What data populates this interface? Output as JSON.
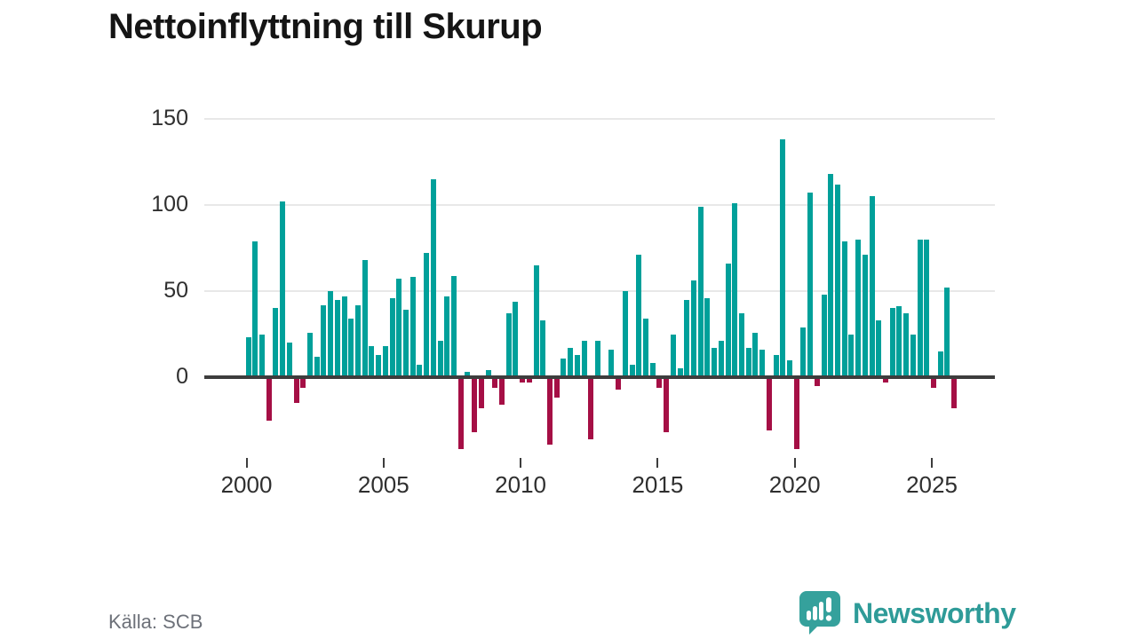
{
  "title": "Nettoinflyttning till Skurup",
  "source": "Källa: SCB",
  "branding": {
    "name": "Newsworthy",
    "icon": "bar-chart-speech-bubble-icon"
  },
  "colors": {
    "positive_bar": "#00a09a",
    "negative_bar": "#a50f45",
    "axis": "#3d3d3d",
    "grid": "#e8e8e8",
    "title_text": "#151515",
    "tick_text": "#2f2f2f",
    "source_text": "#6d7179",
    "brand": "#2e9b98"
  },
  "chart_data": {
    "type": "bar",
    "title": "Nettoinflyttning till Skurup",
    "xlabel": "",
    "ylabel": "",
    "x_unit": "quarter",
    "ylim": [
      -50,
      160
    ],
    "y_ticks": [
      0,
      50,
      100,
      150
    ],
    "x_tick_labels": [
      "2000",
      "2005",
      "2010",
      "2015",
      "2020",
      "2025"
    ],
    "grid": "horizontal",
    "legend": "none",
    "points": [
      {
        "t": "2000 Q1",
        "v": 23
      },
      {
        "t": "2000 Q2",
        "v": 79
      },
      {
        "t": "2000 Q3",
        "v": 25
      },
      {
        "t": "2000 Q4",
        "v": -25
      },
      {
        "t": "2001 Q1",
        "v": 40
      },
      {
        "t": "2001 Q2",
        "v": 102
      },
      {
        "t": "2001 Q3",
        "v": 20
      },
      {
        "t": "2001 Q4",
        "v": -15
      },
      {
        "t": "2002 Q1",
        "v": -6
      },
      {
        "t": "2002 Q2",
        "v": 26
      },
      {
        "t": "2002 Q3",
        "v": 12
      },
      {
        "t": "2002 Q4",
        "v": 42
      },
      {
        "t": "2003 Q1",
        "v": 50
      },
      {
        "t": "2003 Q2",
        "v": 45
      },
      {
        "t": "2003 Q3",
        "v": 47
      },
      {
        "t": "2003 Q4",
        "v": 34
      },
      {
        "t": "2004 Q1",
        "v": 42
      },
      {
        "t": "2004 Q2",
        "v": 68
      },
      {
        "t": "2004 Q3",
        "v": 18
      },
      {
        "t": "2004 Q4",
        "v": 13
      },
      {
        "t": "2005 Q1",
        "v": 18
      },
      {
        "t": "2005 Q2",
        "v": 46
      },
      {
        "t": "2005 Q3",
        "v": 57
      },
      {
        "t": "2005 Q4",
        "v": 39
      },
      {
        "t": "2006 Q1",
        "v": 58
      },
      {
        "t": "2006 Q2",
        "v": 7
      },
      {
        "t": "2006 Q3",
        "v": 72
      },
      {
        "t": "2006 Q4",
        "v": 115
      },
      {
        "t": "2007 Q1",
        "v": 21
      },
      {
        "t": "2007 Q2",
        "v": 47
      },
      {
        "t": "2007 Q3",
        "v": 59
      },
      {
        "t": "2007 Q4",
        "v": -42
      },
      {
        "t": "2008 Q1",
        "v": 3
      },
      {
        "t": "2008 Q2",
        "v": -32
      },
      {
        "t": "2008 Q3",
        "v": -18
      },
      {
        "t": "2008 Q4",
        "v": 4
      },
      {
        "t": "2009 Q1",
        "v": -6
      },
      {
        "t": "2009 Q2",
        "v": -16
      },
      {
        "t": "2009 Q3",
        "v": 37
      },
      {
        "t": "2009 Q4",
        "v": 44
      },
      {
        "t": "2010 Q1",
        "v": -3
      },
      {
        "t": "2010 Q2",
        "v": -3
      },
      {
        "t": "2010 Q3",
        "v": 65
      },
      {
        "t": "2010 Q4",
        "v": 33
      },
      {
        "t": "2011 Q1",
        "v": -39
      },
      {
        "t": "2011 Q2",
        "v": -12
      },
      {
        "t": "2011 Q3",
        "v": 11
      },
      {
        "t": "2011 Q4",
        "v": 17
      },
      {
        "t": "2012 Q1",
        "v": 13
      },
      {
        "t": "2012 Q2",
        "v": 21
      },
      {
        "t": "2012 Q3",
        "v": -36
      },
      {
        "t": "2012 Q4",
        "v": 21
      },
      {
        "t": "2013 Q1",
        "v": 0
      },
      {
        "t": "2013 Q2",
        "v": 16
      },
      {
        "t": "2013 Q3",
        "v": -7
      },
      {
        "t": "2013 Q4",
        "v": 50
      },
      {
        "t": "2014 Q1",
        "v": 7
      },
      {
        "t": "2014 Q2",
        "v": 71
      },
      {
        "t": "2014 Q3",
        "v": 34
      },
      {
        "t": "2014 Q4",
        "v": 8
      },
      {
        "t": "2015 Q1",
        "v": -6
      },
      {
        "t": "2015 Q2",
        "v": -32
      },
      {
        "t": "2015 Q3",
        "v": 25
      },
      {
        "t": "2015 Q4",
        "v": 5
      },
      {
        "t": "2016 Q1",
        "v": 45
      },
      {
        "t": "2016 Q2",
        "v": 56
      },
      {
        "t": "2016 Q3",
        "v": 99
      },
      {
        "t": "2016 Q4",
        "v": 46
      },
      {
        "t": "2017 Q1",
        "v": 17
      },
      {
        "t": "2017 Q2",
        "v": 21
      },
      {
        "t": "2017 Q3",
        "v": 66
      },
      {
        "t": "2017 Q4",
        "v": 101
      },
      {
        "t": "2018 Q1",
        "v": 37
      },
      {
        "t": "2018 Q2",
        "v": 17
      },
      {
        "t": "2018 Q3",
        "v": 26
      },
      {
        "t": "2018 Q4",
        "v": 16
      },
      {
        "t": "2019 Q1",
        "v": -31
      },
      {
        "t": "2019 Q2",
        "v": 13
      },
      {
        "t": "2019 Q3",
        "v": 138
      },
      {
        "t": "2019 Q4",
        "v": 10
      },
      {
        "t": "2020 Q1",
        "v": -42
      },
      {
        "t": "2020 Q2",
        "v": 29
      },
      {
        "t": "2020 Q3",
        "v": 107
      },
      {
        "t": "2020 Q4",
        "v": -5
      },
      {
        "t": "2021 Q1",
        "v": 48
      },
      {
        "t": "2021 Q2",
        "v": 118
      },
      {
        "t": "2021 Q3",
        "v": 112
      },
      {
        "t": "2021 Q4",
        "v": 79
      },
      {
        "t": "2022 Q1",
        "v": 25
      },
      {
        "t": "2022 Q2",
        "v": 80
      },
      {
        "t": "2022 Q3",
        "v": 71
      },
      {
        "t": "2022 Q4",
        "v": 105
      },
      {
        "t": "2023 Q1",
        "v": 33
      },
      {
        "t": "2023 Q2",
        "v": -3
      },
      {
        "t": "2023 Q3",
        "v": 40
      },
      {
        "t": "2023 Q4",
        "v": 41
      },
      {
        "t": "2024 Q1",
        "v": 37
      },
      {
        "t": "2024 Q2",
        "v": 25
      },
      {
        "t": "2024 Q3",
        "v": 80
      },
      {
        "t": "2024 Q4",
        "v": 80
      },
      {
        "t": "2025 Q1",
        "v": -6
      },
      {
        "t": "2025 Q2",
        "v": 15
      },
      {
        "t": "2025 Q3",
        "v": 52
      },
      {
        "t": "2025 Q4",
        "v": -18
      }
    ]
  }
}
